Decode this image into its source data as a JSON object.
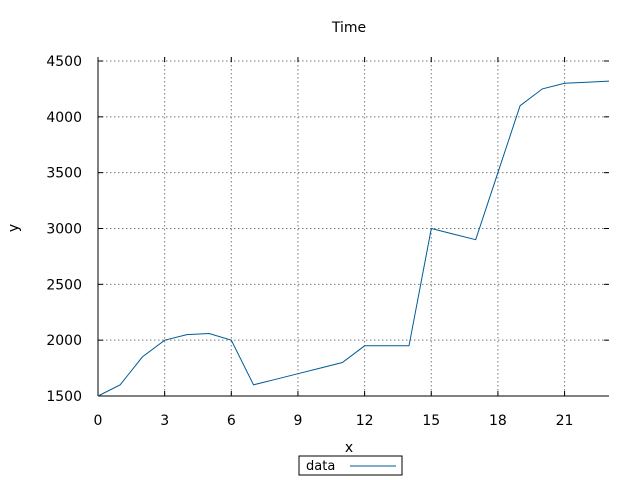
{
  "chart_data": {
    "type": "line",
    "title": "Time",
    "xlabel": "x",
    "ylabel": "y",
    "xlim": [
      0,
      23
    ],
    "ylim": [
      1500,
      4500
    ],
    "xticks": [
      0,
      3,
      6,
      9,
      12,
      15,
      18,
      21
    ],
    "yticks": [
      1500,
      2000,
      2500,
      3000,
      3500,
      4000,
      4500
    ],
    "grid": true,
    "legend_position": "bottom-center",
    "series": [
      {
        "name": "data",
        "color": "#005a96",
        "x": [
          0,
          1,
          2,
          3,
          4,
          5,
          6,
          7,
          8,
          9,
          10,
          11,
          12,
          13,
          14,
          15,
          16,
          17,
          18,
          19,
          20,
          21,
          22,
          23
        ],
        "y": [
          1500,
          1600,
          1850,
          2000,
          2050,
          2060,
          2000,
          1600,
          1650,
          1700,
          1750,
          1800,
          1950,
          1950,
          1950,
          3000,
          2950,
          2900,
          3500,
          4100,
          4250,
          4300,
          4310,
          4320
        ]
      }
    ]
  }
}
